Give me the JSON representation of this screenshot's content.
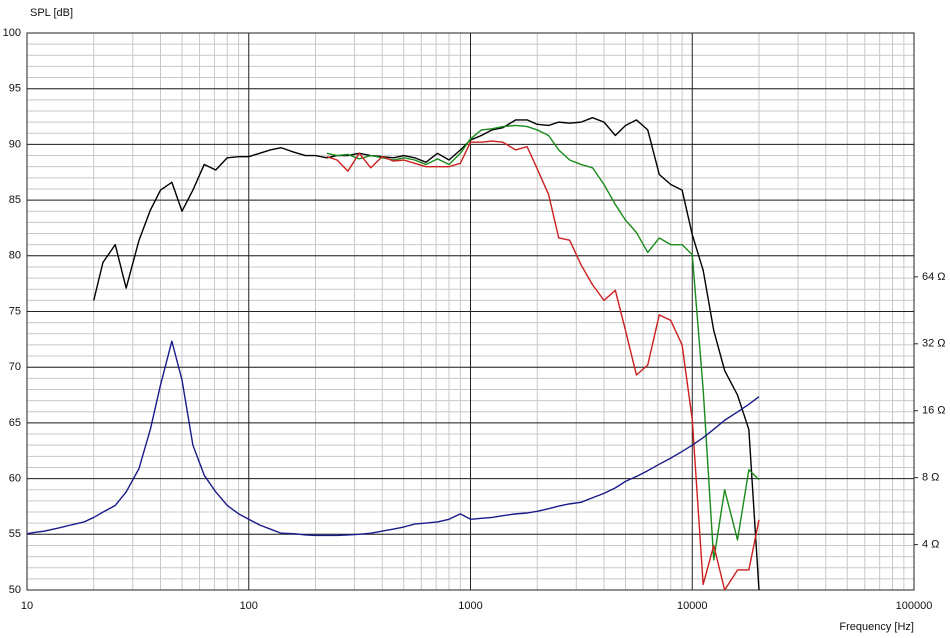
{
  "chart_data": {
    "type": "line",
    "ylabel": "SPL [dB]",
    "xlabel": "Frequency [Hz]",
    "x": [
      10,
      11,
      12,
      14,
      16,
      18,
      20,
      22,
      25,
      28,
      32,
      36,
      40,
      45,
      50,
      56,
      63,
      71,
      80,
      90,
      100,
      112,
      125,
      140,
      160,
      180,
      200,
      225,
      250,
      280,
      315,
      355,
      400,
      450,
      500,
      560,
      630,
      710,
      800,
      900,
      1000,
      1120,
      1250,
      1400,
      1600,
      1800,
      2000,
      2250,
      2500,
      2800,
      3150,
      3550,
      4000,
      4500,
      5000,
      5600,
      6300,
      7100,
      8000,
      9000,
      10000,
      11200,
      12500,
      14000,
      16000,
      18000,
      20000
    ],
    "xlog": true,
    "xlim": [
      10,
      100000
    ],
    "xticks": [
      10,
      100,
      1000,
      10000,
      100000
    ],
    "ylim": [
      50,
      100
    ],
    "yticks": [
      50,
      55,
      60,
      65,
      70,
      75,
      80,
      85,
      90,
      95,
      100
    ],
    "y2log": true,
    "y2lim": [
      2.5,
      800
    ],
    "y2ticks": [
      {
        "value": 4,
        "label": "4 Ω"
      },
      {
        "value": 8,
        "label": "8 Ω"
      },
      {
        "value": 16,
        "label": "16 Ω"
      },
      {
        "value": 32,
        "label": "32 Ω"
      },
      {
        "value": 64,
        "label": "64 Ω"
      }
    ],
    "grid": true,
    "minor_grid": true,
    "series": [
      {
        "color": "#000000",
        "values": [
          null,
          null,
          null,
          null,
          null,
          null,
          76,
          79.4,
          81,
          77.1,
          81.4,
          84.1,
          85.9,
          86.6,
          84,
          85.9,
          88.2,
          87.7,
          88.8,
          88.9,
          88.9,
          89.2,
          89.5,
          89.7,
          89.3,
          89,
          89,
          88.8,
          89,
          89,
          89.2,
          89,
          88.9,
          88.8,
          89,
          88.8,
          88.4,
          89.2,
          88.6,
          89.5,
          90.4,
          90.8,
          91.3,
          91.5,
          92.2,
          92.2,
          91.8,
          91.7,
          92,
          91.9,
          92,
          92.4,
          92,
          90.8,
          91.7,
          92.2,
          91.3,
          87.3,
          86.4,
          85.9,
          81.9,
          78.7,
          73.3,
          69.7,
          67.5,
          64.4,
          50
        ]
      },
      {
        "color": "#1a8a1a",
        "values": [
          null,
          null,
          null,
          null,
          null,
          null,
          null,
          null,
          null,
          null,
          null,
          null,
          null,
          null,
          null,
          null,
          null,
          null,
          null,
          null,
          null,
          null,
          null,
          null,
          null,
          null,
          null,
          89.2,
          89,
          89.1,
          88.7,
          89,
          88.8,
          88.6,
          88.8,
          88.6,
          88.2,
          88.7,
          88.2,
          89.2,
          90.5,
          91.3,
          91.4,
          91.6,
          91.7,
          91.6,
          91.3,
          90.8,
          89.5,
          88.6,
          88.2,
          87.9,
          86.4,
          84.6,
          83.2,
          82.1,
          80.3,
          81.6,
          81,
          81,
          80.1,
          68,
          52.7,
          59,
          54.5,
          60.8,
          59.9
        ]
      },
      {
        "color": "#cc1f1f",
        "values": [
          null,
          null,
          null,
          null,
          null,
          null,
          null,
          null,
          null,
          null,
          null,
          null,
          null,
          null,
          null,
          null,
          null,
          null,
          null,
          null,
          null,
          null,
          null,
          null,
          null,
          null,
          null,
          88.9,
          88.6,
          87.6,
          89.2,
          87.9,
          88.9,
          88.5,
          88.6,
          88.3,
          88,
          88,
          88,
          88.3,
          90.2,
          90.2,
          90.3,
          90.2,
          89.5,
          89.8,
          87.8,
          85.5,
          81.6,
          81.4,
          79.2,
          77.4,
          76,
          76.9,
          73.3,
          69.3,
          70.2,
          74.7,
          74.2,
          72,
          65.3,
          50.5,
          54,
          50,
          51.8,
          51.8,
          56.3
        ]
      },
      {
        "color": "#1a1a8a",
        "axis": "y2",
        "values": [
          4.48,
          4.55,
          4.6,
          4.76,
          4.92,
          5.05,
          5.3,
          5.6,
          6.0,
          6.9,
          8.8,
          13.2,
          20.9,
          32.9,
          22,
          11.2,
          8.2,
          6.9,
          6.0,
          5.5,
          5.2,
          4.9,
          4.7,
          4.5,
          4.48,
          4.42,
          4.4,
          4.4,
          4.4,
          4.42,
          4.45,
          4.5,
          4.6,
          4.7,
          4.8,
          4.95,
          5.0,
          5.06,
          5.2,
          5.5,
          5.2,
          5.25,
          5.3,
          5.4,
          5.5,
          5.55,
          5.65,
          5.8,
          5.96,
          6.1,
          6.2,
          6.5,
          6.8,
          7.2,
          7.7,
          8.1,
          8.6,
          9.2,
          9.8,
          10.5,
          11.2,
          12.1,
          13.2,
          14.5,
          15.8,
          17.1,
          18.5
        ]
      }
    ]
  }
}
